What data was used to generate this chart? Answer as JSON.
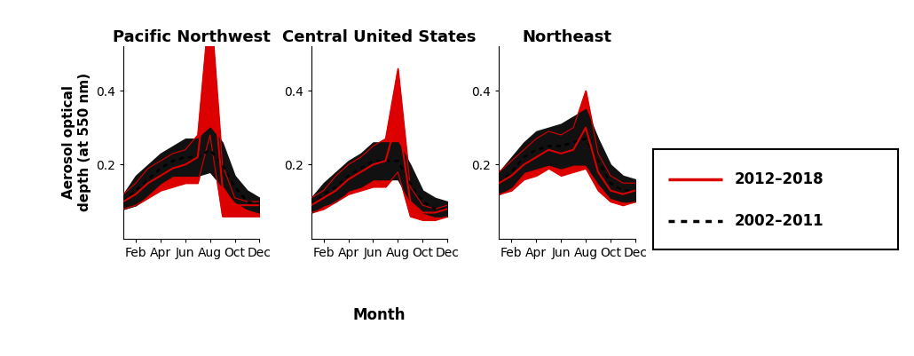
{
  "months": [
    1,
    2,
    3,
    4,
    5,
    6,
    7,
    8,
    9,
    10,
    11,
    12
  ],
  "month_labels": [
    "Feb",
    "Apr",
    "Jun",
    "Aug",
    "Oct",
    "Dec"
  ],
  "month_ticks": [
    2,
    4,
    6,
    8,
    10,
    12
  ],
  "titles": [
    "Pacific Northwest",
    "Central United States",
    "Northeast"
  ],
  "ylabel": "Aerosol optical\ndepth (at 550 nm)",
  "xlabel": "Month",
  "ylim": [
    0.0,
    0.52
  ],
  "yticks": [
    0.2,
    0.4
  ],
  "regions": {
    "pnw": {
      "red_mean": [
        0.1,
        0.12,
        0.15,
        0.17,
        0.19,
        0.2,
        0.22,
        0.5,
        0.14,
        0.09,
        0.09,
        0.09
      ],
      "red_upper": [
        0.12,
        0.15,
        0.19,
        0.21,
        0.23,
        0.24,
        0.28,
        0.65,
        0.2,
        0.11,
        0.1,
        0.1
      ],
      "red_lower": [
        0.08,
        0.09,
        0.11,
        0.13,
        0.14,
        0.15,
        0.15,
        0.28,
        0.06,
        0.06,
        0.06,
        0.06
      ],
      "black_mean": [
        0.1,
        0.13,
        0.16,
        0.19,
        0.21,
        0.22,
        0.22,
        0.24,
        0.2,
        0.14,
        0.1,
        0.09
      ],
      "black_upper": [
        0.12,
        0.17,
        0.2,
        0.23,
        0.25,
        0.27,
        0.27,
        0.3,
        0.26,
        0.17,
        0.13,
        0.11
      ],
      "black_lower": [
        0.08,
        0.09,
        0.12,
        0.15,
        0.17,
        0.17,
        0.17,
        0.18,
        0.14,
        0.1,
        0.08,
        0.07
      ]
    },
    "central": {
      "red_mean": [
        0.09,
        0.11,
        0.13,
        0.16,
        0.18,
        0.2,
        0.21,
        0.33,
        0.1,
        0.07,
        0.07,
        0.08
      ],
      "red_upper": [
        0.11,
        0.13,
        0.17,
        0.2,
        0.22,
        0.25,
        0.27,
        0.46,
        0.14,
        0.09,
        0.08,
        0.09
      ],
      "red_lower": [
        0.07,
        0.08,
        0.1,
        0.12,
        0.13,
        0.14,
        0.14,
        0.18,
        0.06,
        0.05,
        0.05,
        0.06
      ],
      "black_mean": [
        0.09,
        0.12,
        0.14,
        0.17,
        0.19,
        0.21,
        0.21,
        0.21,
        0.15,
        0.1,
        0.08,
        0.08
      ],
      "black_upper": [
        0.11,
        0.15,
        0.18,
        0.21,
        0.23,
        0.26,
        0.26,
        0.26,
        0.2,
        0.13,
        0.11,
        0.1
      ],
      "black_lower": [
        0.07,
        0.09,
        0.1,
        0.13,
        0.14,
        0.16,
        0.16,
        0.16,
        0.1,
        0.07,
        0.06,
        0.06
      ]
    },
    "northeast": {
      "red_mean": [
        0.15,
        0.17,
        0.2,
        0.22,
        0.24,
        0.23,
        0.24,
        0.3,
        0.18,
        0.13,
        0.12,
        0.13
      ],
      "red_upper": [
        0.18,
        0.21,
        0.24,
        0.27,
        0.29,
        0.28,
        0.3,
        0.4,
        0.23,
        0.17,
        0.15,
        0.15
      ],
      "red_lower": [
        0.12,
        0.13,
        0.16,
        0.17,
        0.19,
        0.17,
        0.18,
        0.19,
        0.13,
        0.1,
        0.09,
        0.1
      ],
      "black_mean": [
        0.15,
        0.18,
        0.22,
        0.24,
        0.25,
        0.25,
        0.26,
        0.27,
        0.21,
        0.15,
        0.13,
        0.13
      ],
      "black_upper": [
        0.18,
        0.22,
        0.26,
        0.29,
        0.3,
        0.31,
        0.33,
        0.35,
        0.27,
        0.2,
        0.17,
        0.16
      ],
      "black_lower": [
        0.12,
        0.14,
        0.18,
        0.19,
        0.2,
        0.19,
        0.2,
        0.2,
        0.15,
        0.11,
        0.1,
        0.1
      ]
    }
  },
  "red_color": "#dd0000",
  "black_color": "#111111",
  "red_fill_alpha": 1.0,
  "black_fill_alpha": 1.0,
  "title_fontsize": 13,
  "label_fontsize": 11,
  "tick_fontsize": 10,
  "legend_fontsize": 12
}
